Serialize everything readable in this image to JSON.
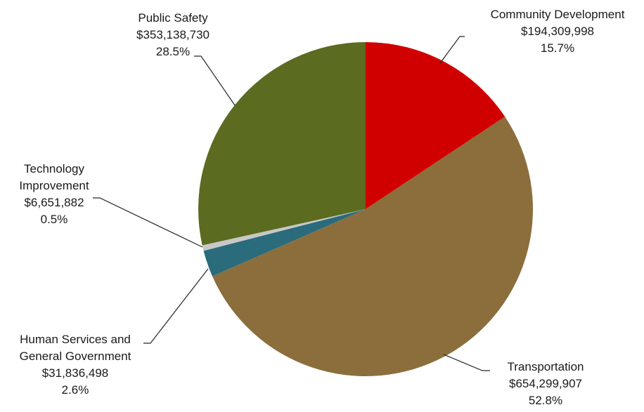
{
  "chart_data": {
    "type": "pie",
    "title": "",
    "start_angle_deg": 0,
    "direction": "clockwise",
    "slices": [
      {
        "label": "Community Development",
        "label_lines": [
          "Community Development"
        ],
        "amount": "$194,309,998",
        "percent_label": "15.7%",
        "value": 194309998,
        "color": "#d10000"
      },
      {
        "label": "Transportation",
        "label_lines": [
          "Transportation"
        ],
        "amount": "$654,299,907",
        "percent_label": "52.8%",
        "value": 654299907,
        "color": "#8b6e3c"
      },
      {
        "label": "Human Services and General Government",
        "label_lines": [
          "Human Services and",
          "General Government"
        ],
        "amount": "$31,836,498",
        "percent_label": "2.6%",
        "value": 31836498,
        "color": "#2a6b7c"
      },
      {
        "label": "Technology Improvement",
        "label_lines": [
          "Technology",
          "Improvement"
        ],
        "amount": "$6,651,882",
        "percent_label": "0.5%",
        "value": 6651882,
        "color": "#c8c8c8"
      },
      {
        "label": "Public Safety",
        "label_lines": [
          "Public Safety"
        ],
        "amount": "$353,138,730",
        "percent_label": "28.5%",
        "value": 353138730,
        "color": "#5b6b20"
      }
    ]
  }
}
